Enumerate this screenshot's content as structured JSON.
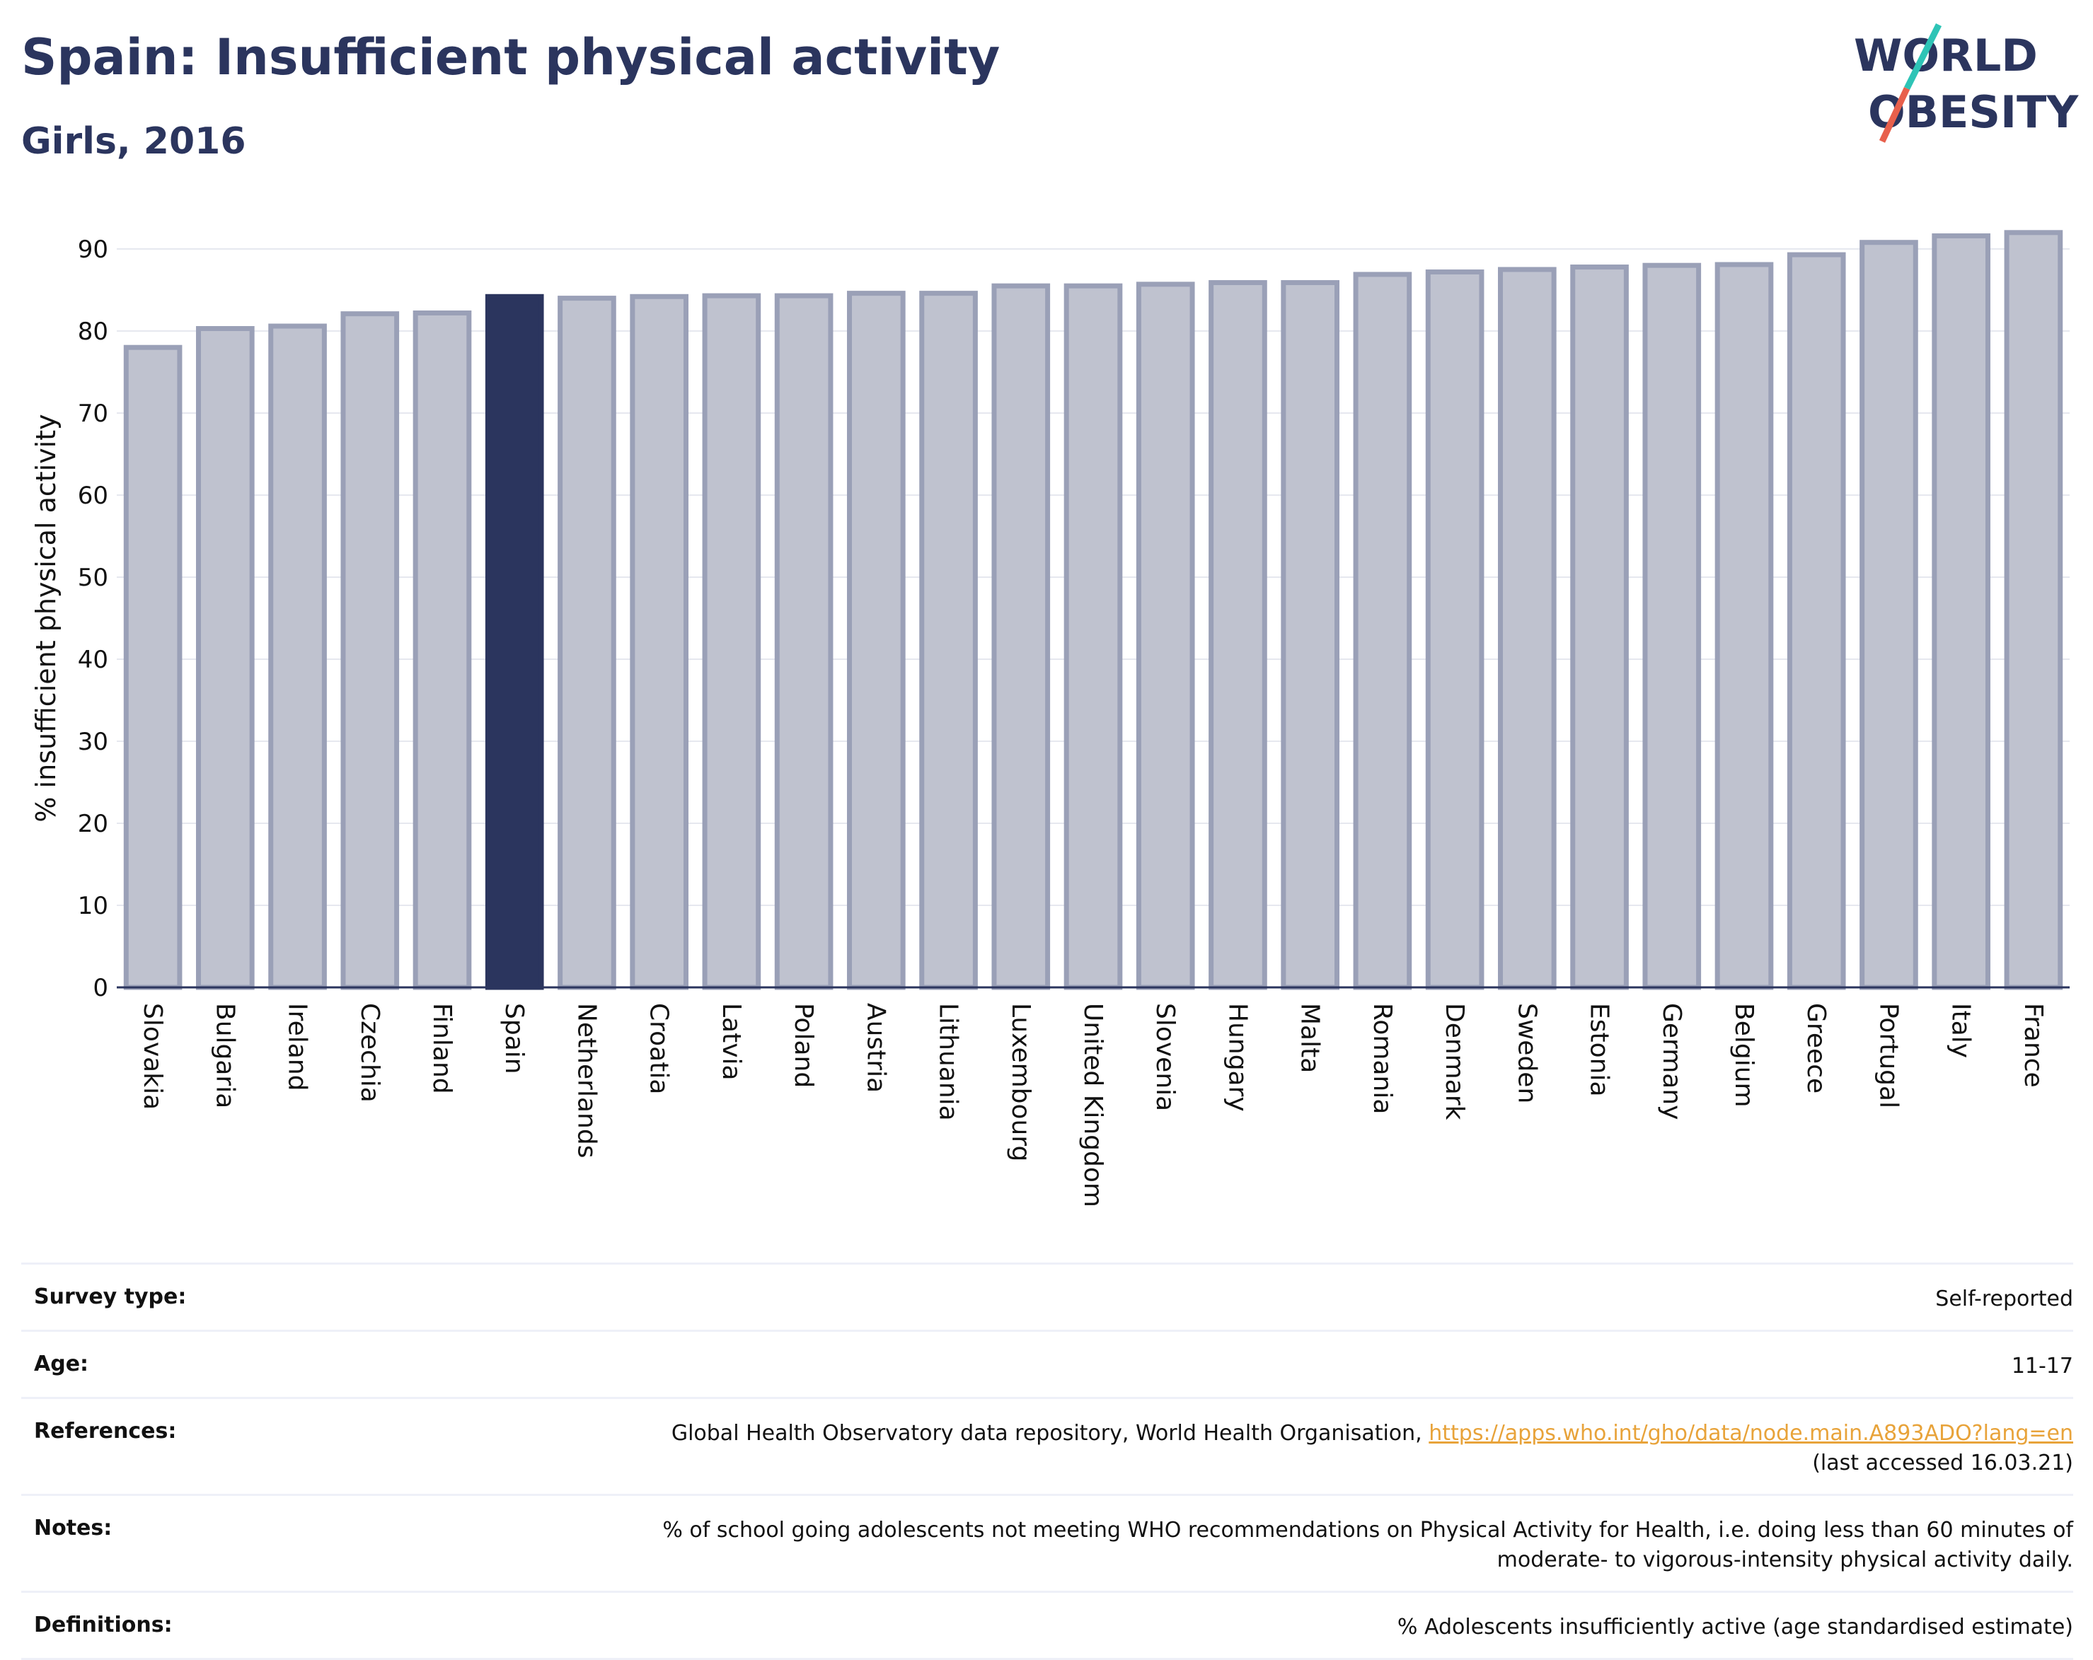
{
  "header": {
    "title": "Spain: Insufficient physical activity",
    "subtitle": "Girls, 2016"
  },
  "logo": {
    "line1": "WORLD",
    "line2": "OBESITY",
    "text_color": "#2b355e",
    "slash_top_color": "#2ec4b6",
    "slash_bottom_color": "#e8604c"
  },
  "chart_data": {
    "type": "bar",
    "ylabel": "% insufficient physical activity",
    "xlabel": "",
    "ylim": [
      0,
      90
    ],
    "yticks": [
      0,
      10,
      20,
      30,
      40,
      50,
      60,
      70,
      80,
      90
    ],
    "grid": true,
    "highlight": "Spain",
    "colors": {
      "bar": "#bfc2cf",
      "bar_edge": "#9aa0b7",
      "highlight": "#2b355e"
    },
    "categories": [
      "Slovakia",
      "Bulgaria",
      "Ireland",
      "Czechia",
      "Finland",
      "Spain",
      "Netherlands",
      "Croatia",
      "Latvia",
      "Poland",
      "Austria",
      "Lithuania",
      "Luxembourg",
      "United Kingdom",
      "Slovenia",
      "Hungary",
      "Malta",
      "Romania",
      "Denmark",
      "Sweden",
      "Estonia",
      "Germany",
      "Belgium",
      "Greece",
      "Portugal",
      "Italy",
      "France"
    ],
    "values": [
      78.0,
      80.3,
      80.6,
      82.1,
      82.2,
      84.2,
      84.0,
      84.2,
      84.3,
      84.3,
      84.6,
      84.6,
      85.5,
      85.5,
      85.7,
      85.9,
      85.9,
      86.9,
      87.2,
      87.5,
      87.8,
      88.0,
      88.1,
      89.3,
      90.8,
      91.6,
      92.0
    ]
  },
  "meta": {
    "survey_type": {
      "label": "Survey type:",
      "value": "Self-reported"
    },
    "age": {
      "label": "Age:",
      "value": "11-17"
    },
    "references": {
      "label": "References:",
      "text": "Global Health Observatory data repository, World Health Organisation,",
      "link": "https://apps.who.int/gho/data/node.main.A893ADO?lang=en",
      "accessed": "(last accessed 16.03.21)"
    },
    "notes": {
      "label": "Notes:",
      "line1": "% of school going adolescents not meeting WHO recommendations on Physical Activity for Health, i.e. doing less than 60 minutes of",
      "line2": "moderate- to vigorous-intensity physical activity daily."
    },
    "definitions": {
      "label": "Definitions:",
      "value": "% Adolescents insufficiently active (age standardised estimate)"
    }
  }
}
